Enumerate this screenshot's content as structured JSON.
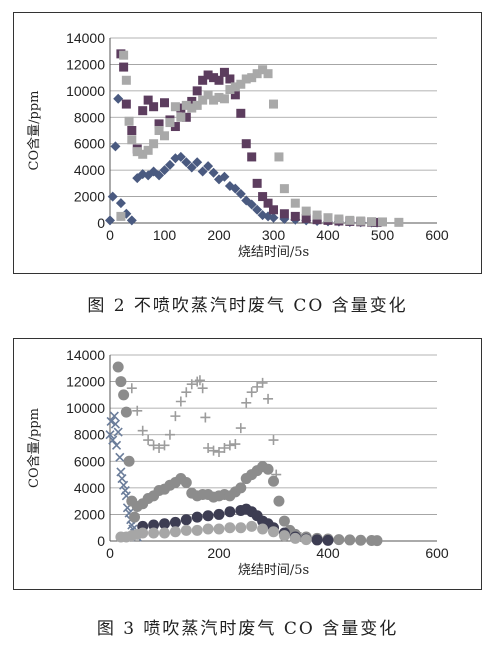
{
  "figure2": {
    "caption": "图 2   不喷吹蒸汽时废气 CO 含量变化",
    "chart_data": {
      "type": "scatter",
      "title": "",
      "xlabel": "烧结时间/5s",
      "ylabel": "CO含量/ppm",
      "xlim": [
        0,
        600
      ],
      "ylim": [
        0,
        14000
      ],
      "xticks": [
        "0",
        "100",
        "200",
        "300",
        "400",
        "500",
        "600"
      ],
      "yticks": [
        "0",
        "2000",
        "4000",
        "6000",
        "8000",
        "10000",
        "12000",
        "14000"
      ],
      "grid": "horizontal",
      "series": [
        {
          "marker": "diamond",
          "color": "#4a5a80",
          "x": [
            0,
            5,
            10,
            15,
            20,
            30,
            40,
            50,
            60,
            70,
            80,
            90,
            100,
            110,
            120,
            130,
            140,
            150,
            160,
            170,
            180,
            190,
            200,
            210,
            220,
            230,
            240,
            250,
            260,
            270,
            280,
            290,
            300,
            320,
            340,
            360,
            380,
            400,
            420,
            440,
            460,
            480,
            490
          ],
          "y": [
            200,
            2000,
            5800,
            9400,
            1500,
            700,
            200,
            3400,
            3700,
            3600,
            3900,
            3600,
            4000,
            4400,
            4900,
            5000,
            4600,
            4200,
            4600,
            3900,
            4300,
            3800,
            3300,
            3500,
            2800,
            2600,
            2200,
            1700,
            1400,
            1000,
            600,
            500,
            400,
            300,
            250,
            200,
            150,
            120,
            100,
            80,
            60,
            40,
            30
          ]
        },
        {
          "marker": "square",
          "color": "#5c3d5e",
          "x": [
            20,
            25,
            30,
            40,
            50,
            60,
            70,
            80,
            90,
            100,
            110,
            120,
            130,
            140,
            150,
            160,
            170,
            180,
            190,
            200,
            210,
            220,
            230,
            240,
            250,
            260,
            270,
            280,
            290,
            300,
            320,
            340,
            360,
            380,
            400,
            420,
            440,
            460,
            480,
            490
          ],
          "y": [
            12800,
            11800,
            9000,
            7000,
            5600,
            8500,
            9300,
            8800,
            7500,
            9100,
            7800,
            7300,
            8700,
            8000,
            9200,
            10000,
            10800,
            11200,
            11000,
            10800,
            11400,
            10900,
            9700,
            8300,
            6000,
            5000,
            3000,
            2000,
            1500,
            1000,
            700,
            500,
            350,
            250,
            200,
            150,
            120,
            90,
            60,
            40
          ]
        },
        {
          "marker": "square",
          "color": "#a9a9a9",
          "x": [
            20,
            25,
            30,
            35,
            40,
            50,
            60,
            70,
            80,
            90,
            100,
            110,
            120,
            130,
            140,
            150,
            160,
            170,
            180,
            190,
            200,
            210,
            220,
            230,
            240,
            250,
            260,
            270,
            280,
            290,
            300,
            310,
            320,
            340,
            360,
            380,
            400,
            420,
            440,
            460,
            480,
            500,
            530
          ],
          "y": [
            500,
            12700,
            10800,
            7700,
            6300,
            5400,
            5200,
            5500,
            6000,
            7000,
            6600,
            7600,
            8800,
            8000,
            8900,
            8700,
            8900,
            9300,
            9700,
            9300,
            9500,
            9400,
            10100,
            10300,
            10500,
            10900,
            11000,
            11300,
            11600,
            11300,
            9000,
            5000,
            2600,
            1500,
            900,
            600,
            400,
            300,
            200,
            150,
            100,
            80,
            50
          ]
        }
      ]
    }
  },
  "figure3": {
    "caption": "图 3   喷吹蒸汽时废气 CO 含量变化",
    "chart_data": {
      "type": "scatter",
      "title": "",
      "xlabel": "烧结时间/5s",
      "ylabel": "CO含量/ppm",
      "xlim": [
        0,
        600
      ],
      "ylim": [
        0,
        14000
      ],
      "xticks": [
        "0",
        "200",
        "400",
        "600"
      ],
      "yticks": [
        "0",
        "2000",
        "4000",
        "6000",
        "8000",
        "10000",
        "12000",
        "14000"
      ],
      "grid": "horizontal",
      "series": [
        {
          "marker": "x",
          "color": "#6b7d9a",
          "x": [
            0,
            2,
            5,
            8,
            10,
            12,
            15,
            18,
            20,
            22,
            25,
            28,
            30,
            32,
            35,
            38,
            40,
            42,
            45,
            48,
            50
          ],
          "y": [
            8000,
            9000,
            7600,
            9400,
            8800,
            7200,
            8200,
            6300,
            5200,
            4700,
            4200,
            3800,
            3400,
            2500,
            2100,
            1600,
            1200,
            900,
            600,
            400,
            300
          ]
        },
        {
          "marker": "plus",
          "color": "#9c9c9c",
          "x": [
            40,
            50,
            60,
            70,
            80,
            90,
            100,
            110,
            120,
            130,
            140,
            150,
            160,
            165,
            170,
            175,
            180,
            190,
            200,
            210,
            220,
            230,
            240,
            250,
            260,
            270,
            280,
            290,
            300,
            305,
            310,
            320,
            330,
            340,
            350,
            360,
            380,
            400
          ],
          "y": [
            11500,
            9800,
            8300,
            7600,
            7200,
            7000,
            7200,
            8000,
            9400,
            10500,
            11200,
            11800,
            12000,
            12100,
            11500,
            9300,
            7000,
            6800,
            6700,
            7000,
            7200,
            7300,
            8500,
            10400,
            11200,
            11600,
            11900,
            10700,
            7600,
            5000,
            3000,
            1500,
            800,
            500,
            300,
            200,
            100,
            50
          ]
        },
        {
          "marker": "circle",
          "color": "#8c8c8c",
          "x": [
            15,
            20,
            25,
            30,
            35,
            40,
            45,
            50,
            60,
            70,
            80,
            90,
            100,
            110,
            120,
            130,
            140,
            150,
            160,
            170,
            180,
            190,
            200,
            210,
            220,
            230,
            240,
            250,
            260,
            270,
            280,
            290,
            300,
            310,
            320,
            330,
            340,
            360,
            380,
            400,
            420,
            440,
            460,
            480,
            490
          ],
          "y": [
            13100,
            12000,
            11000,
            9700,
            6000,
            3000,
            1800,
            2600,
            2800,
            3200,
            3400,
            3800,
            3900,
            4200,
            4400,
            4700,
            4400,
            3600,
            3400,
            3500,
            3500,
            3300,
            3400,
            3500,
            3400,
            3700,
            4000,
            4700,
            5000,
            5300,
            5600,
            5400,
            4500,
            3000,
            1500,
            800,
            500,
            300,
            200,
            150,
            100,
            80,
            60,
            40,
            30
          ]
        },
        {
          "marker": "circle",
          "color": "#3d3d52",
          "x": [
            60,
            80,
            100,
            120,
            140,
            160,
            180,
            200,
            220,
            240,
            250,
            260,
            270,
            280,
            290,
            300,
            320,
            340,
            360,
            380,
            400
          ],
          "y": [
            1100,
            1200,
            1300,
            1400,
            1600,
            1800,
            1900,
            2000,
            2200,
            2300,
            2400,
            2200,
            1900,
            1500,
            1300,
            1000,
            600,
            300,
            150,
            80,
            50
          ]
        },
        {
          "marker": "circle",
          "color": "#a6a6a6",
          "x": [
            20,
            30,
            40,
            50,
            60,
            80,
            100,
            120,
            140,
            160,
            180,
            200,
            220,
            240,
            260,
            280,
            300,
            320,
            340,
            360
          ],
          "y": [
            300,
            300,
            400,
            500,
            600,
            600,
            600,
            700,
            800,
            800,
            900,
            900,
            1000,
            1000,
            1100,
            900,
            700,
            400,
            200,
            100
          ]
        }
      ]
    }
  }
}
